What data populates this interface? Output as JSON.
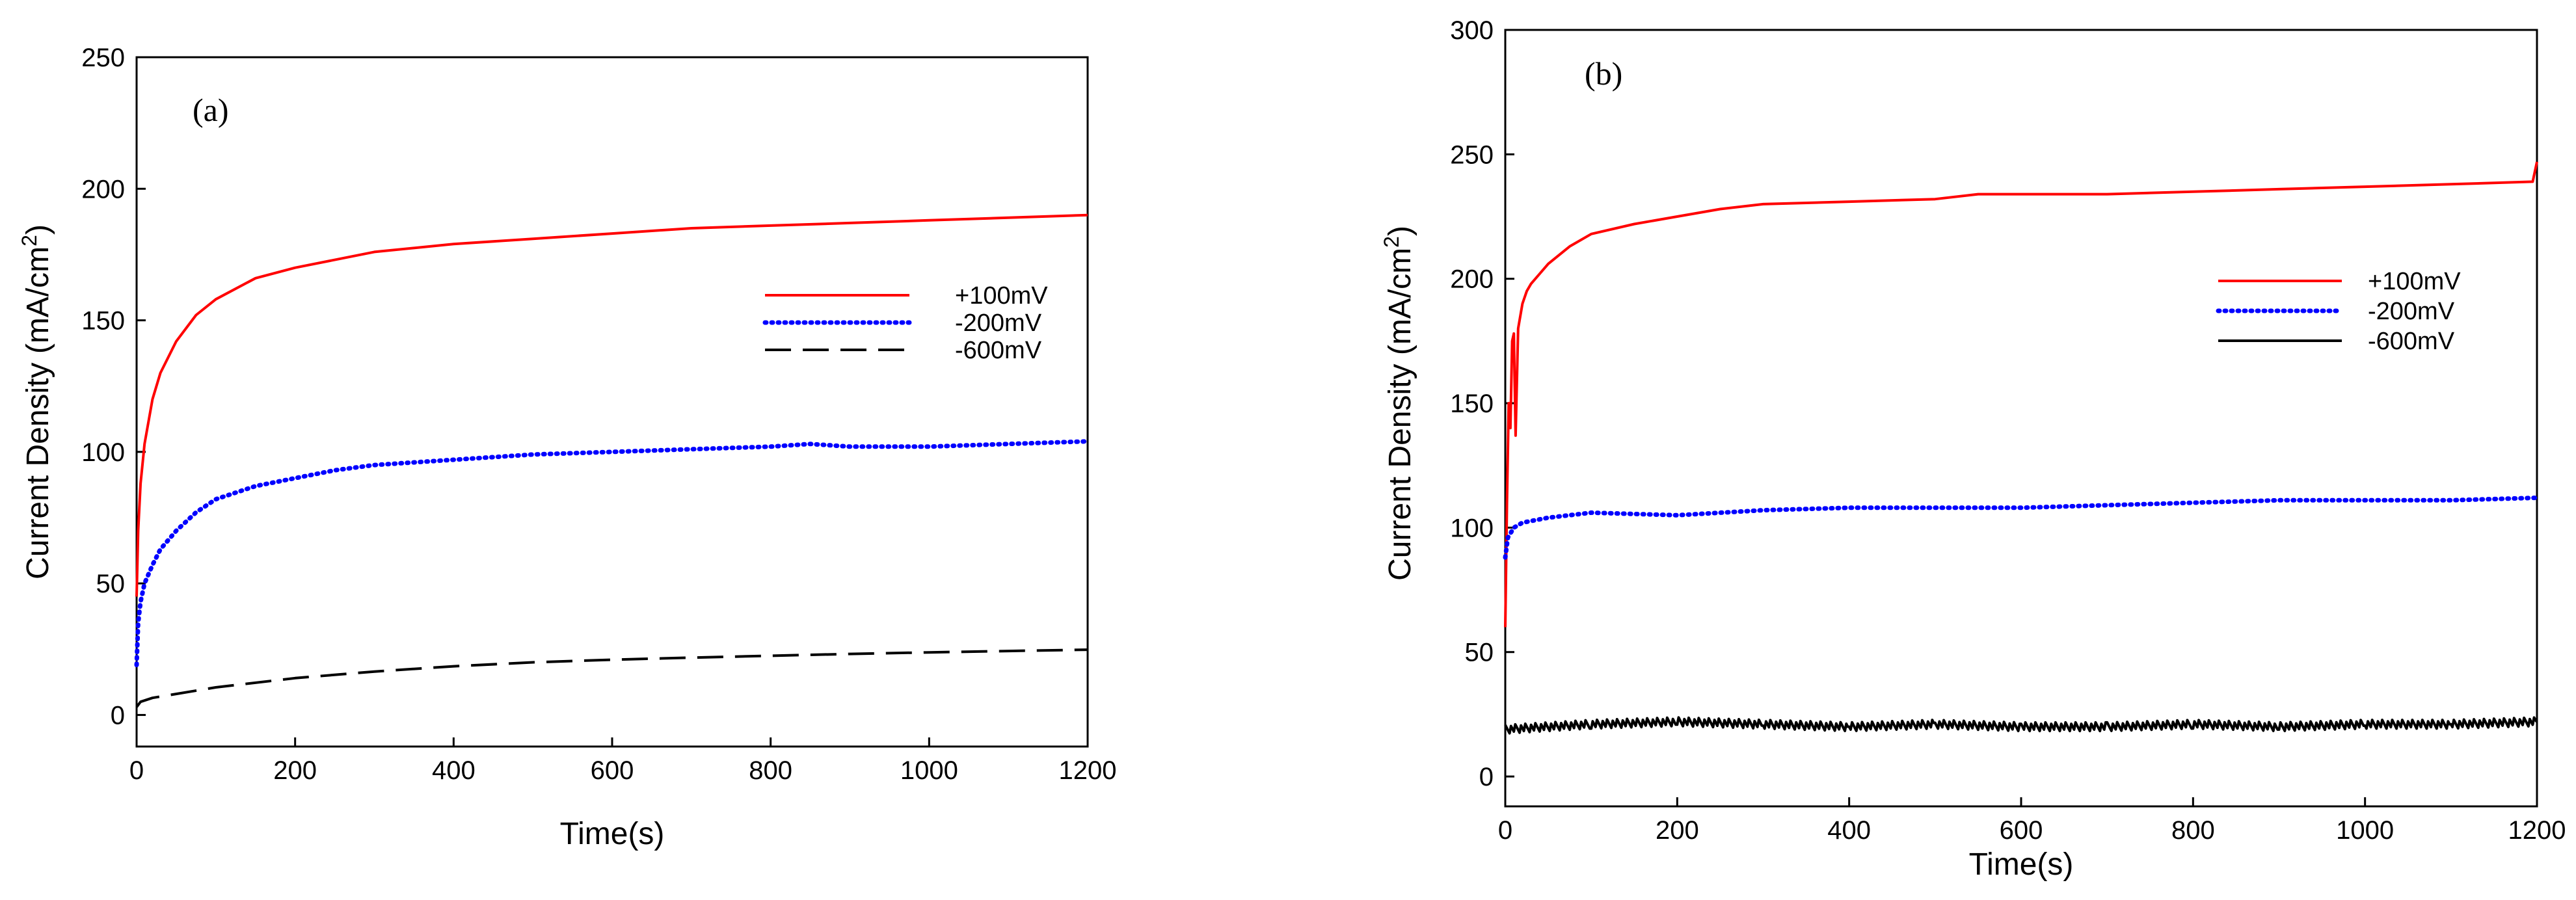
{
  "chart_data": [
    {
      "type": "line",
      "panel_label": "(a)",
      "xlabel": "Time(s)",
      "ylabel_main": "Current Density (mA/cm",
      "ylabel_sup": "2",
      "ylabel_end": ")",
      "xlim": [
        0,
        1200
      ],
      "ylim": [
        -12,
        250
      ],
      "xticks": [
        0,
        200,
        400,
        600,
        800,
        1000,
        1200
      ],
      "yticks": [
        0,
        50,
        100,
        150,
        200,
        250
      ],
      "legend_position": "right",
      "series": [
        {
          "name": "+100mV",
          "style": "solid",
          "color": "#ff0000",
          "x": [
            0,
            2,
            5,
            10,
            20,
            30,
            50,
            75,
            100,
            150,
            200,
            300,
            400,
            500,
            600,
            700,
            800,
            900,
            1000,
            1100,
            1200
          ],
          "y": [
            45,
            70,
            88,
            103,
            120,
            130,
            142,
            152,
            158,
            166,
            170,
            176,
            179,
            181,
            183,
            185,
            186,
            187,
            188,
            189,
            190
          ]
        },
        {
          "name": "-200mV",
          "style": "dotted",
          "color": "#0000ff",
          "x": [
            0,
            2,
            5,
            10,
            20,
            30,
            50,
            75,
            100,
            150,
            200,
            250,
            300,
            400,
            500,
            600,
            700,
            800,
            850,
            900,
            1000,
            1100,
            1200
          ],
          "y": [
            19,
            35,
            43,
            50,
            57,
            63,
            70,
            77,
            82,
            87,
            90,
            93,
            95,
            97,
            99,
            100,
            101,
            102,
            103,
            102,
            102,
            103,
            104
          ]
        },
        {
          "name": "-600mV",
          "style": "dashed",
          "color": "#000000",
          "x": [
            0,
            5,
            20,
            50,
            100,
            200,
            300,
            400,
            500,
            600,
            700,
            800,
            900,
            1000,
            1100,
            1200
          ],
          "y": [
            3,
            5,
            6.5,
            8,
            10.5,
            14,
            16.5,
            18.5,
            20,
            21,
            21.8,
            22.5,
            23.2,
            23.8,
            24.3,
            24.8
          ]
        }
      ]
    },
    {
      "type": "line",
      "panel_label": "(b)",
      "xlabel": "Time(s)",
      "ylabel_main": "Current Density (mA/cm",
      "ylabel_sup": "2",
      "ylabel_end": ")",
      "xlim": [
        0,
        1200
      ],
      "ylim": [
        -12,
        300
      ],
      "xticks": [
        0,
        200,
        400,
        600,
        800,
        1000,
        1200
      ],
      "yticks": [
        0,
        50,
        100,
        150,
        200,
        250,
        300
      ],
      "legend_position": "right",
      "series": [
        {
          "name": "+100mV",
          "style": "solid",
          "color": "#ff0000",
          "x": [
            0,
            2,
            4,
            6,
            8,
            10,
            12,
            15,
            20,
            25,
            30,
            40,
            50,
            75,
            100,
            150,
            200,
            250,
            300,
            400,
            500,
            550,
            600,
            700,
            800,
            900,
            1000,
            1100,
            1195,
            1200
          ],
          "y": [
            60,
            110,
            150,
            140,
            175,
            178,
            137,
            180,
            190,
            195,
            198,
            202,
            206,
            213,
            218,
            222,
            225,
            228,
            230,
            231,
            232,
            234,
            234,
            234,
            235,
            236,
            237,
            238,
            239,
            247
          ]
        },
        {
          "name": "-200mV",
          "style": "dotted",
          "color": "#0000ff",
          "x": [
            0,
            3,
            10,
            20,
            50,
            100,
            200,
            300,
            400,
            500,
            600,
            700,
            800,
            900,
            1000,
            1100,
            1200
          ],
          "y": [
            88,
            96,
            100,
            102,
            104,
            106,
            105,
            107,
            108,
            108,
            108,
            109,
            110,
            111,
            111,
            111,
            112
          ]
        },
        {
          "name": "-600mV",
          "style": "noisy-solid",
          "color": "#000000",
          "x": [
            0,
            100,
            200,
            300,
            400,
            500,
            600,
            700,
            800,
            900,
            1000,
            1100,
            1200
          ],
          "y": [
            19,
            21,
            22,
            21,
            20,
            21,
            20,
            20,
            21,
            20,
            21,
            21,
            22
          ]
        }
      ]
    }
  ]
}
